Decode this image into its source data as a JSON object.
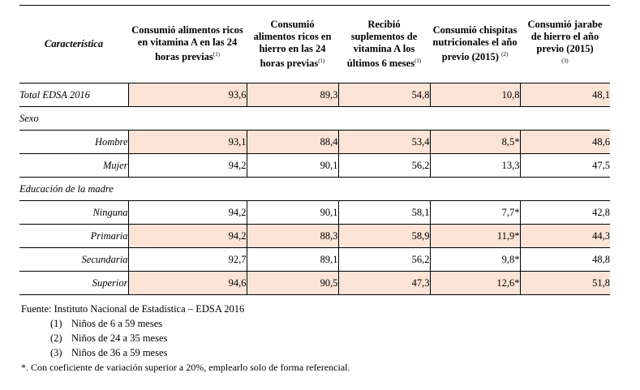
{
  "table": {
    "headers": [
      {
        "label": "Característica",
        "sup": ""
      },
      {
        "label": "Consumió alimentos ricos en vitamina A en las 24 horas previas",
        "sup": "(1)"
      },
      {
        "label": "Consumió alimentos ricos en hierro en las 24 horas previas",
        "sup": "(1)"
      },
      {
        "label": "Recibió suplementos de vitamina A los últimos 6 meses",
        "sup": "(1)"
      },
      {
        "label": "Consumió chispitas nutricionales el año previo (2015)",
        "sup": "(2)"
      },
      {
        "label": "Consumió jarabe de hierro el año previo (2015)",
        "sup": "(3)"
      }
    ],
    "total": {
      "label": "Total EDSA 2016",
      "values": [
        "93,6",
        "89,3",
        "54,8",
        "10,8",
        "48,1"
      ]
    },
    "sections": [
      {
        "title": "Sexo",
        "rows": [
          {
            "label": "Hombre",
            "values": [
              "93,1",
              "88,4",
              "53,4",
              "8,5*",
              "48,6"
            ]
          },
          {
            "label": "Mujer",
            "values": [
              "94,2",
              "90,1",
              "56,2",
              "13,3",
              "47,5"
            ]
          }
        ]
      },
      {
        "title": "Educación de la madre",
        "rows": [
          {
            "label": "Ninguna",
            "values": [
              "94,2",
              "90,1",
              "58,1",
              "7,7*",
              "42,8"
            ]
          },
          {
            "label": "Primaria",
            "values": [
              "94,2",
              "88,3",
              "58,9",
              "11,9*",
              "44,3"
            ]
          },
          {
            "label": "Secundaria",
            "values": [
              "92,7",
              "89,1",
              "56,2",
              "9,8*",
              "48,8"
            ]
          },
          {
            "label": "Superior",
            "values": [
              "94,6",
              "90,5",
              "47,3",
              "12,6*",
              "51,8"
            ]
          }
        ]
      }
    ]
  },
  "notes": {
    "source": "Fuente: Instituto Nacional de Estadística – EDSA 2016",
    "items": [
      {
        "key": "(1)",
        "text": "Niños de 6 a 59 meses"
      },
      {
        "key": "(2)",
        "text": "Niños de 24 a 35 meses"
      },
      {
        "key": "(3)",
        "text": "Niños de 36 a 59 meses"
      }
    ],
    "footnote": "*. Con coeficiente de variación superior a 20%, emplearlo solo de forma referencial."
  },
  "colors": {
    "shade": "#fbe4d5",
    "rule": "#000000"
  }
}
